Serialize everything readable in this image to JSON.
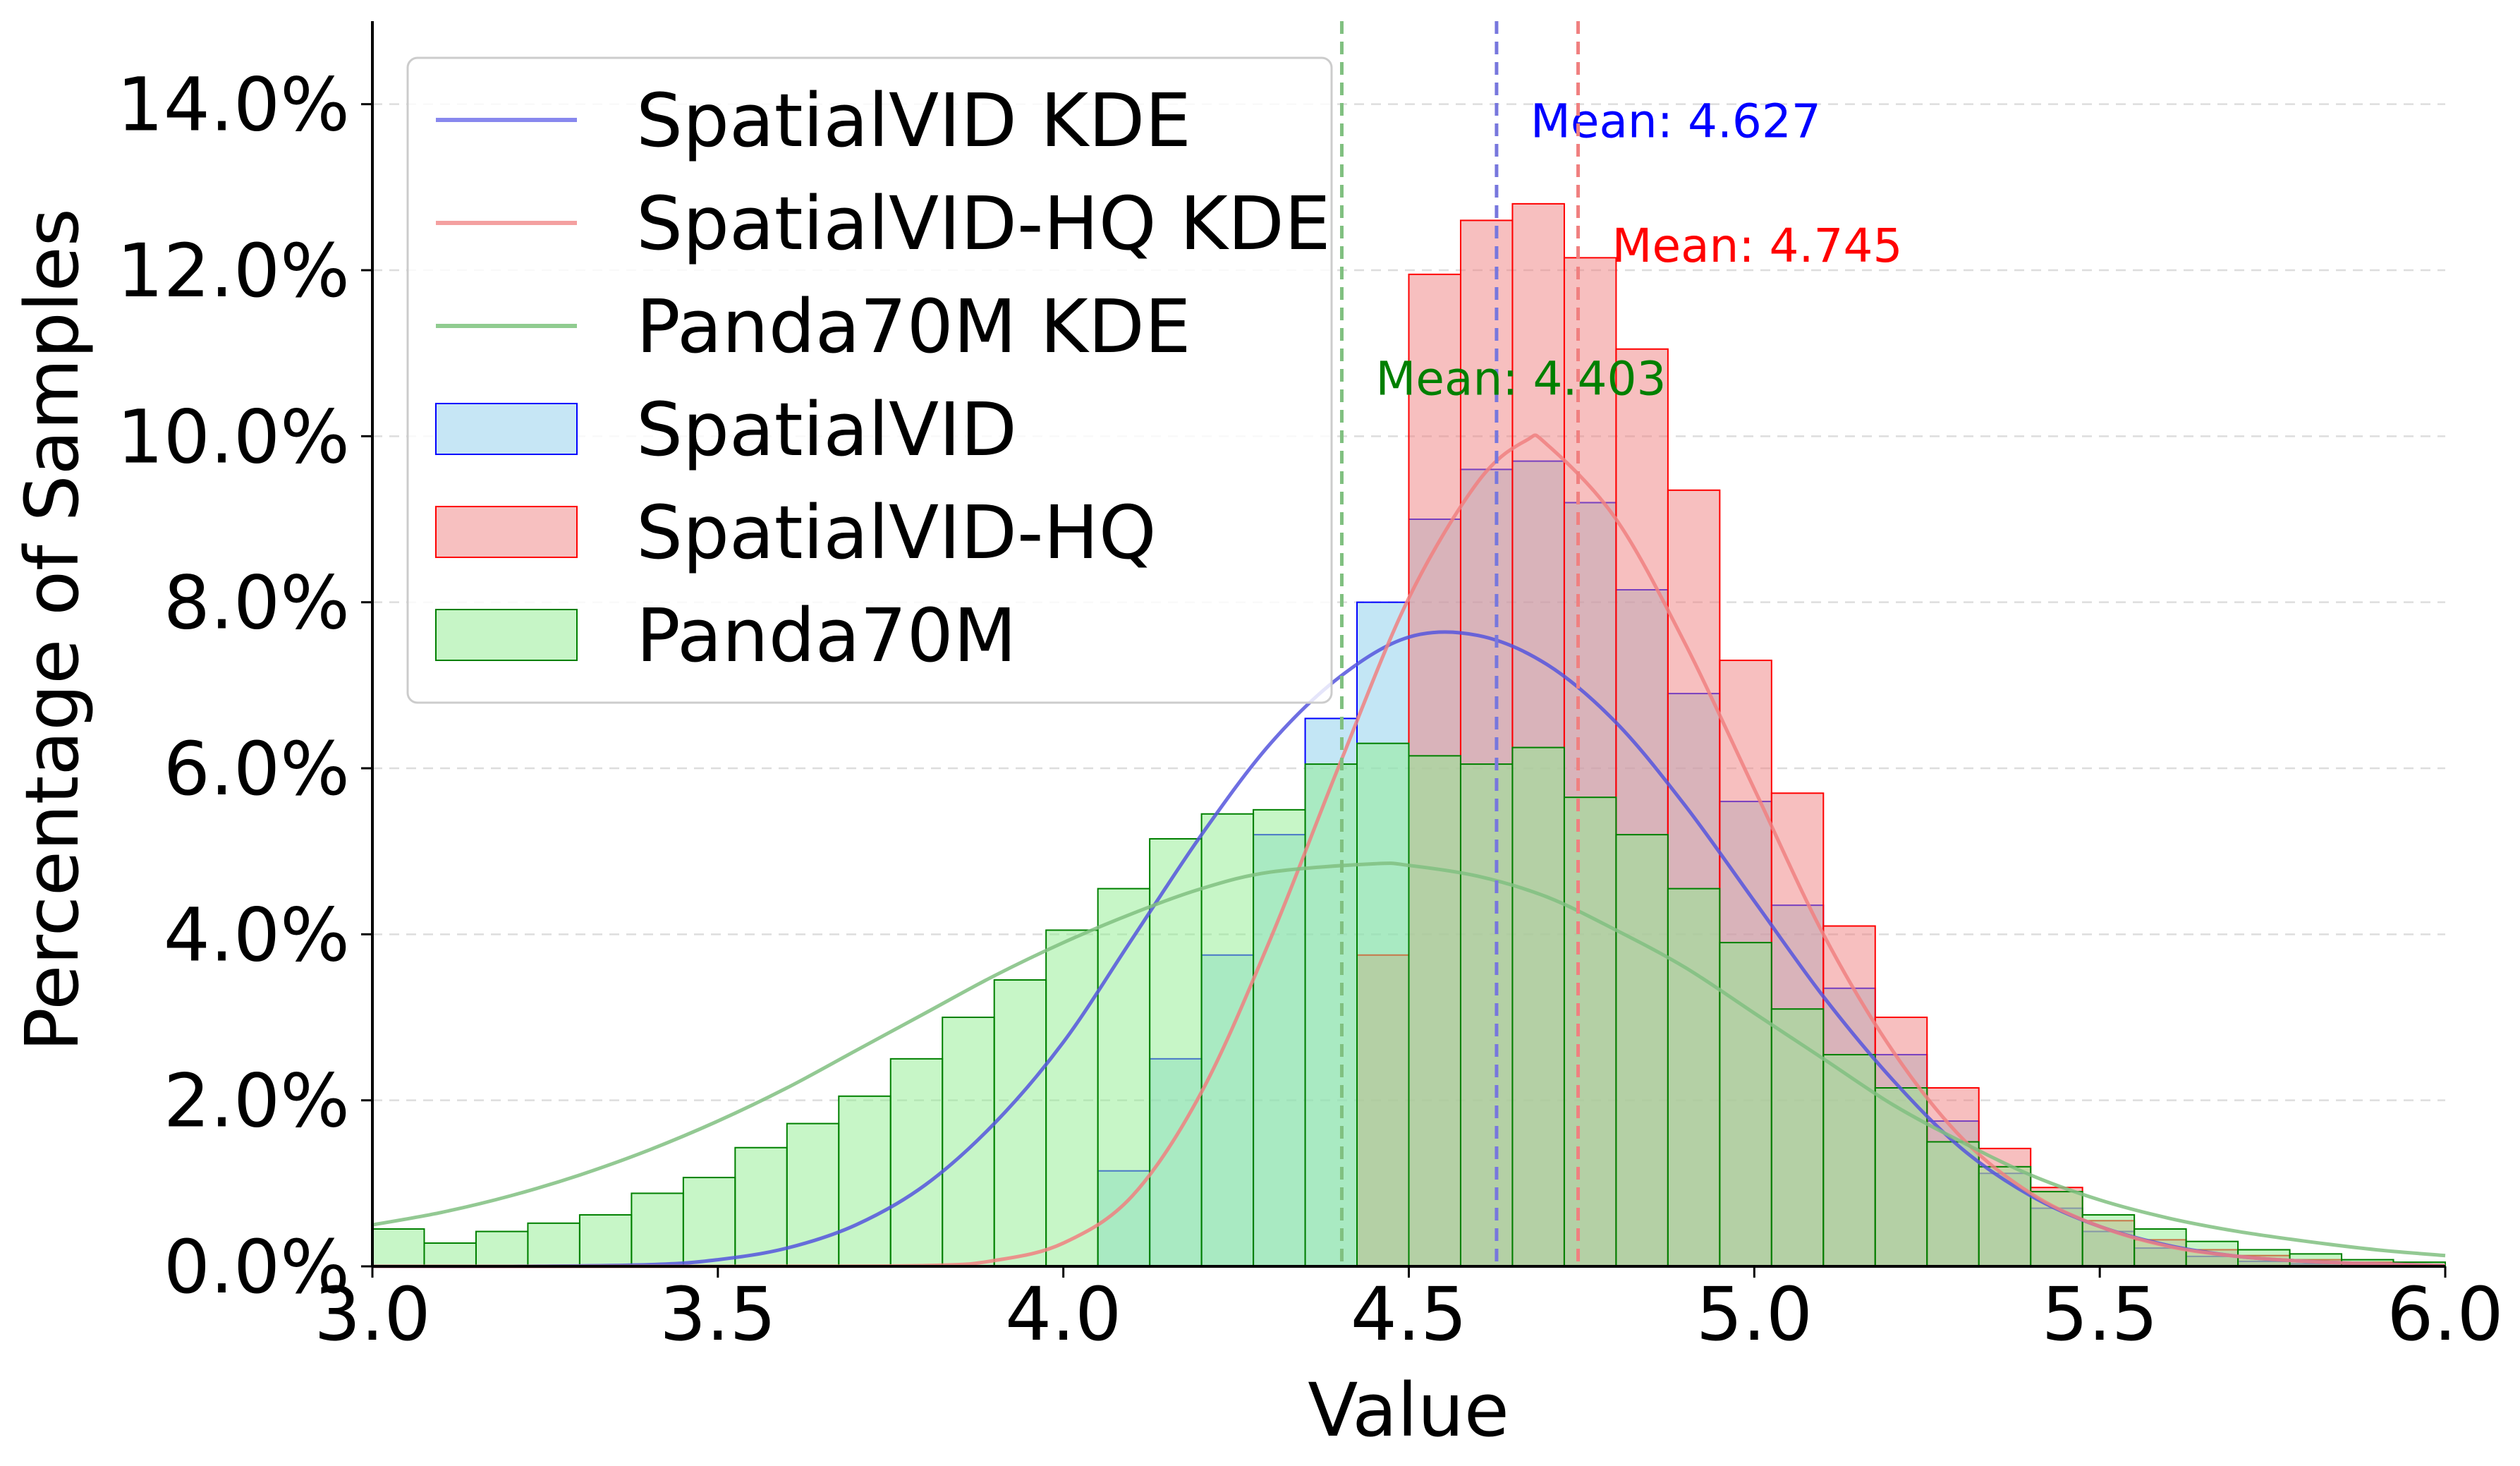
{
  "chart_data": {
    "type": "histogram",
    "xlabel": "Value",
    "ylabel": "Percentage of Samples",
    "xlim": [
      3.0,
      6.0
    ],
    "ylim": [
      0,
      15
    ],
    "xticks": [
      "3.0",
      "3.5",
      "4.0",
      "4.5",
      "5.0",
      "5.5",
      "6.0"
    ],
    "yticks": [
      "0.0%",
      "2.0%",
      "4.0%",
      "6.0%",
      "8.0%",
      "10.0%",
      "12.0%",
      "14.0%"
    ],
    "grid": "horizontal-dashed",
    "legend_position": "top-left",
    "bin_edges": [
      3.0,
      3.075,
      3.15,
      3.225,
      3.3,
      3.375,
      3.45,
      3.525,
      3.6,
      3.675,
      3.75,
      3.825,
      3.9,
      3.975,
      4.05,
      4.125,
      4.2,
      4.275,
      4.35,
      4.425,
      4.5,
      4.575,
      4.65,
      4.725,
      4.8,
      4.875,
      4.95,
      5.025,
      5.1,
      5.175,
      5.25,
      5.325,
      5.4,
      5.475,
      5.55,
      5.625,
      5.7,
      5.775,
      5.85,
      5.925,
      6.0
    ],
    "series": [
      {
        "name": "SpatialVID",
        "kind": "hist",
        "fill": "#87ceeb",
        "edge": "#0000ff",
        "values": [
          0,
          0,
          0,
          0,
          0,
          0,
          0,
          0,
          0,
          0,
          0,
          0,
          0,
          0,
          1.15,
          2.5,
          3.75,
          5.2,
          6.6,
          8.0,
          9.0,
          9.6,
          9.7,
          9.2,
          8.15,
          6.9,
          5.6,
          4.35,
          3.35,
          2.55,
          1.75,
          1.12,
          0.7,
          0.42,
          0.22,
          0.12,
          0.06,
          0.03,
          0.01,
          0.005
        ]
      },
      {
        "name": "SpatialVID-HQ",
        "kind": "hist",
        "fill": "#f08080",
        "edge": "#ff0000",
        "values": [
          0,
          0,
          0,
          0,
          0,
          0,
          0,
          0,
          0,
          0,
          0,
          0,
          0,
          0,
          0,
          0,
          0,
          0,
          0,
          3.75,
          11.95,
          12.6,
          12.8,
          12.15,
          11.05,
          9.35,
          7.3,
          5.7,
          4.1,
          3.0,
          2.15,
          1.42,
          0.95,
          0.55,
          0.32,
          0.2,
          0.13,
          0.08,
          0.05,
          0.02
        ]
      },
      {
        "name": "Panda70M",
        "kind": "hist",
        "fill": "#90ee90",
        "edge": "#008000",
        "values": [
          0.45,
          0.28,
          0.42,
          0.52,
          0.62,
          0.88,
          1.07,
          1.43,
          1.72,
          2.05,
          2.5,
          3.0,
          3.45,
          4.05,
          4.55,
          5.15,
          5.45,
          5.5,
          6.05,
          6.3,
          6.15,
          6.05,
          6.25,
          5.65,
          5.2,
          4.55,
          3.9,
          3.1,
          2.55,
          2.15,
          1.5,
          1.2,
          0.9,
          0.62,
          0.45,
          0.3,
          0.2,
          0.15,
          0.08,
          0.05
        ]
      },
      {
        "name": "SpatialVID KDE",
        "kind": "kde",
        "color": "#5555dd",
        "x": [
          3.0,
          3.2,
          3.4,
          3.5,
          3.6,
          3.7,
          3.8,
          3.9,
          4.0,
          4.1,
          4.2,
          4.3,
          4.4,
          4.5,
          4.6,
          4.7,
          4.8,
          4.9,
          5.0,
          5.1,
          5.2,
          5.3,
          5.4,
          5.5,
          5.6,
          5.7,
          5.8,
          5.9,
          6.0
        ],
        "y": [
          0,
          0,
          0.02,
          0.08,
          0.22,
          0.5,
          0.98,
          1.72,
          2.7,
          3.95,
          5.2,
          6.3,
          7.1,
          7.58,
          7.6,
          7.25,
          6.55,
          5.55,
          4.4,
          3.25,
          2.25,
          1.42,
          0.85,
          0.48,
          0.25,
          0.12,
          0.06,
          0.03,
          0.01
        ]
      },
      {
        "name": "SpatialVID-HQ KDE",
        "kind": "kde",
        "color": "#f08080",
        "x": [
          3.0,
          3.5,
          3.8,
          3.9,
          4.0,
          4.1,
          4.2,
          4.3,
          4.4,
          4.5,
          4.6,
          4.67,
          4.7,
          4.8,
          4.9,
          5.0,
          5.1,
          5.2,
          5.3,
          5.4,
          5.5,
          5.6,
          5.7,
          5.8,
          5.9,
          6.0
        ],
        "y": [
          0,
          0,
          0.01,
          0.07,
          0.28,
          0.85,
          2.1,
          3.95,
          6.05,
          8.05,
          9.45,
          9.95,
          9.9,
          9.0,
          7.5,
          5.75,
          4.0,
          2.6,
          1.55,
          0.88,
          0.48,
          0.24,
          0.12,
          0.06,
          0.03,
          0.01
        ]
      },
      {
        "name": "Panda70M KDE",
        "kind": "kde",
        "color": "#80c080",
        "x": [
          3.0,
          3.1,
          3.2,
          3.3,
          3.4,
          3.5,
          3.6,
          3.7,
          3.8,
          3.9,
          4.0,
          4.1,
          4.2,
          4.3,
          4.45,
          4.5,
          4.6,
          4.7,
          4.8,
          4.9,
          5.0,
          5.1,
          5.2,
          5.3,
          5.4,
          5.5,
          5.6,
          5.7,
          5.8,
          5.9,
          6.0
        ],
        "y": [
          0.5,
          0.65,
          0.85,
          1.1,
          1.4,
          1.75,
          2.15,
          2.6,
          3.05,
          3.5,
          3.9,
          4.25,
          4.55,
          4.75,
          4.85,
          4.83,
          4.7,
          4.45,
          4.05,
          3.6,
          3.05,
          2.5,
          1.95,
          1.5,
          1.1,
          0.8,
          0.58,
          0.42,
          0.3,
          0.2,
          0.13
        ]
      }
    ],
    "means": [
      {
        "label": "Mean: 4.627",
        "value": 4.627,
        "color": "#0000ff",
        "line_color": "#7777dd",
        "label_y": 13.6
      },
      {
        "label": "Mean: 4.745",
        "value": 4.745,
        "color": "#ff0000",
        "line_color": "#f08080",
        "label_y": 12.1
      },
      {
        "label": "Mean: 4.403",
        "value": 4.403,
        "color": "#008000",
        "line_color": "#80c080",
        "label_y": 10.5
      }
    ],
    "legend": [
      {
        "label": "SpatialVID KDE",
        "type": "line",
        "color": "#8888ee"
      },
      {
        "label": "SpatialVID-HQ KDE",
        "type": "line",
        "color": "#f4a0a0"
      },
      {
        "label": "Panda70M KDE",
        "type": "line",
        "color": "#90cc90"
      },
      {
        "label": "SpatialVID",
        "type": "patch",
        "fill": "#c6e6f5",
        "edge": "#0000ff"
      },
      {
        "label": "SpatialVID-HQ",
        "type": "patch",
        "fill": "#f7c0c0",
        "edge": "#ff0000"
      },
      {
        "label": "Panda70M",
        "type": "patch",
        "fill": "#c6f5c6",
        "edge": "#008000"
      }
    ]
  }
}
